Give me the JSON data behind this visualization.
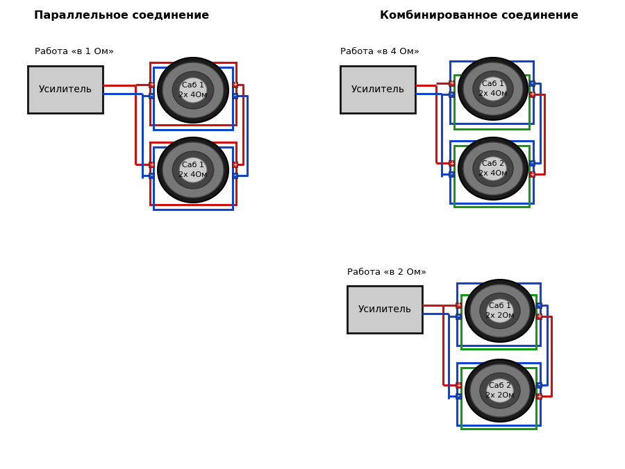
{
  "bg_color": "#ffffff",
  "title_left": "Параллельное соединение",
  "title_right": "Комбинированное соединение",
  "title_fontsize": 11.5,
  "label_fontsize": 9.5,
  "sub_fontsize": 8,
  "amp_fontsize": 10,
  "red": "#cc1111",
  "blue": "#1144cc",
  "green": "#119911",
  "amp_fill": "#cccccc",
  "amp_edge": "#111111",
  "speaker_dark": "#2a2a2a",
  "speaker_mid": "#777777",
  "speaker_inner_dark": "#444444",
  "speaker_center": "#cccccc",
  "panel1": {
    "label": "Работа «в 1 Ом»",
    "amp_text": "Усилитель",
    "spk1_text": "Саб 1\n2х 4Ом",
    "spk2_text": "Саб 1\n2х 4Ом"
  },
  "panel2": {
    "label": "Работа «в 4 Ом»",
    "amp_text": "Усилитель",
    "spk1_text": "Саб 1\n2х 4Ом",
    "spk2_text": "Саб 2\n2х 4Ом"
  },
  "panel3": {
    "label": "Работа «в 2 Ом»",
    "amp_text": "Усилитель",
    "spk1_text": "Саб 1\n2х 2Ом",
    "spk2_text": "Саб 2\n2х 2Ом"
  }
}
